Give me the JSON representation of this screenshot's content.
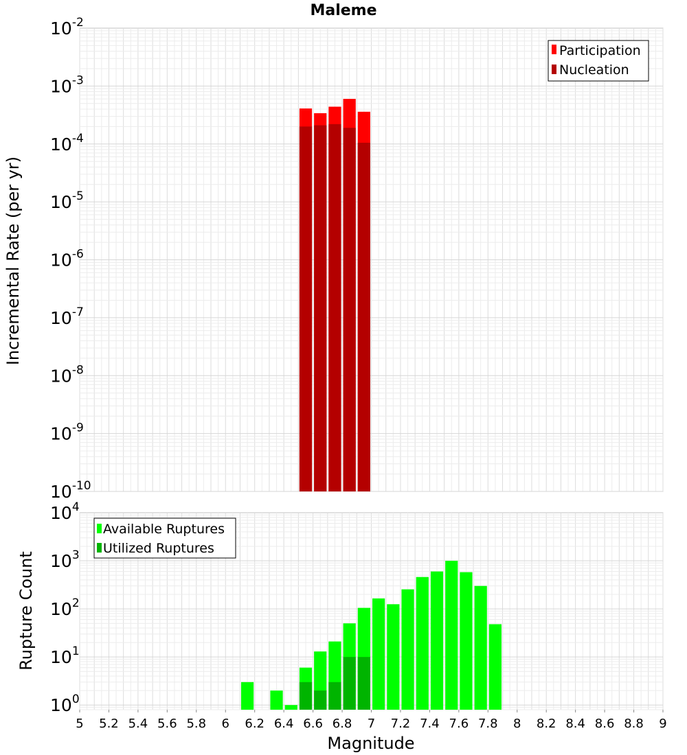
{
  "chart_data": [
    {
      "type": "bar",
      "title": "Maleme",
      "xlabel": "",
      "ylabel": "Incremental Rate (per yr)",
      "y_scale": "log",
      "ylim": [
        1e-10,
        0.01
      ],
      "xlim": [
        5,
        9
      ],
      "y_ticks": [
        {
          "base": "10",
          "exp": "-2"
        },
        {
          "base": "10",
          "exp": "-3"
        },
        {
          "base": "10",
          "exp": "-4"
        },
        {
          "base": "10",
          "exp": "-5"
        },
        {
          "base": "10",
          "exp": "-6"
        },
        {
          "base": "10",
          "exp": "-7"
        },
        {
          "base": "10",
          "exp": "-8"
        },
        {
          "base": "10",
          "exp": "-9"
        },
        {
          "base": "10",
          "exp": "-10"
        }
      ],
      "bin_width": 0.1,
      "x": [
        6.55,
        6.65,
        6.75,
        6.85,
        6.95
      ],
      "series": [
        {
          "name": "Participation",
          "color": "#ff0000",
          "values": [
            0.00041,
            0.00034,
            0.00044,
            0.0006,
            0.00036
          ]
        },
        {
          "name": "Nucleation",
          "color": "#b40000",
          "values": [
            0.0002,
            0.00021,
            0.00022,
            0.00019,
            0.000105
          ]
        }
      ],
      "legend": "top-right",
      "grid": true
    },
    {
      "type": "bar",
      "title": "",
      "xlabel": "Magnitude",
      "ylabel": "Rupture Count",
      "y_scale": "log",
      "ylim": [
        0.8,
        10000
      ],
      "xlim": [
        5,
        9
      ],
      "x_ticks": [
        "5",
        "5.2",
        "5.4",
        "5.6",
        "5.8",
        "6",
        "6.2",
        "6.4",
        "6.6",
        "6.8",
        "7",
        "7.2",
        "7.4",
        "7.6",
        "7.8",
        "8",
        "8.2",
        "8.4",
        "8.6",
        "8.8",
        "9"
      ],
      "y_ticks": [
        {
          "base": "10",
          "exp": "4"
        },
        {
          "base": "10",
          "exp": "3"
        },
        {
          "base": "10",
          "exp": "2"
        },
        {
          "base": "10",
          "exp": "1"
        },
        {
          "base": "10",
          "exp": "0"
        }
      ],
      "bin_width": 0.1,
      "series": [
        {
          "name": "Available Ruptures",
          "color": "#00ff00",
          "x": [
            6.15,
            6.35,
            6.45,
            6.55,
            6.65,
            6.75,
            6.85,
            6.95,
            7.05,
            7.15,
            7.25,
            7.35,
            7.45,
            7.55,
            7.65,
            7.75,
            7.85
          ],
          "values": [
            3,
            2,
            1,
            6,
            13,
            21,
            50,
            105,
            165,
            125,
            255,
            460,
            600,
            1000,
            580,
            300,
            48
          ]
        },
        {
          "name": "Utilized Ruptures",
          "color": "#00b400",
          "x": [
            6.55,
            6.65,
            6.75,
            6.85,
            6.95
          ],
          "values": [
            3,
            2,
            3,
            10,
            10
          ]
        }
      ],
      "legend": "top-left",
      "grid": true
    }
  ]
}
